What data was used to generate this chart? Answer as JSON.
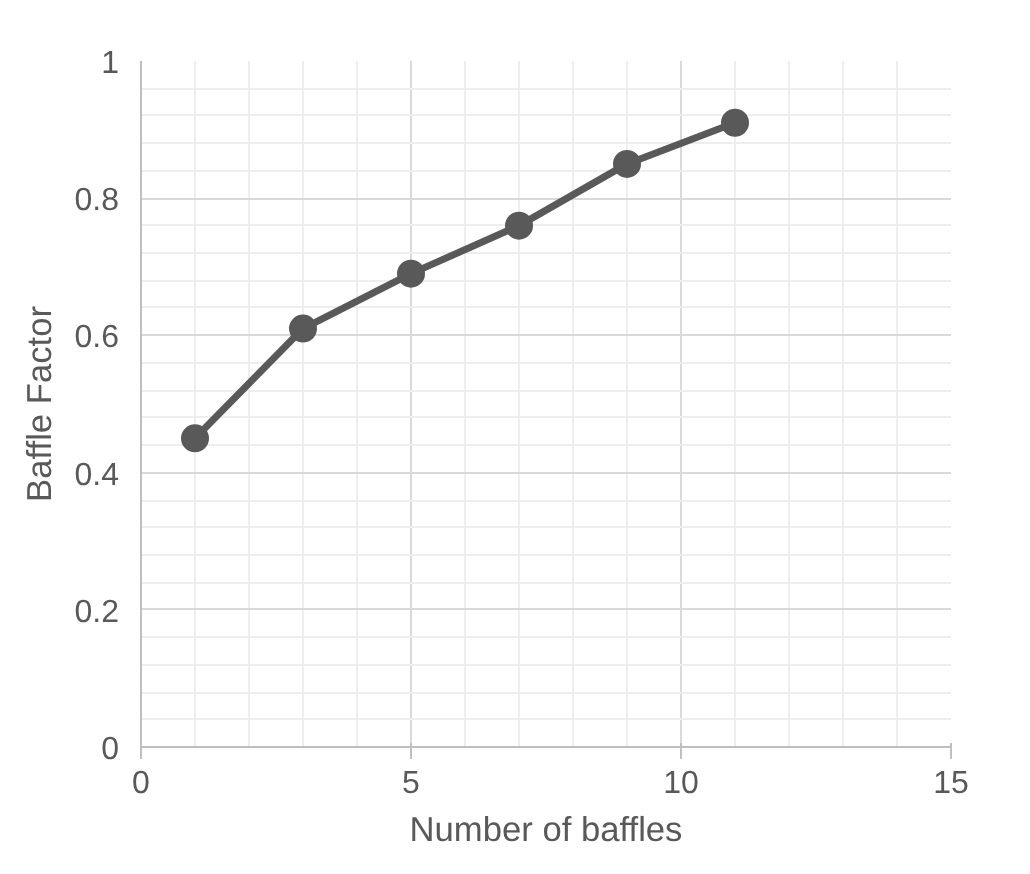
{
  "chart_data": {
    "type": "line",
    "xlabel": "Number of baffles",
    "ylabel": "Baffle Factor",
    "x": [
      1,
      3,
      5,
      7,
      9,
      11
    ],
    "series": [
      {
        "color": "#595959",
        "values": [
          0.45,
          0.61,
          0.69,
          0.76,
          0.85,
          0.91
        ]
      }
    ],
    "xlim": [
      0,
      15
    ],
    "xticks": [
      0,
      5,
      10,
      15
    ],
    "ylim": [
      0,
      1
    ],
    "yticks": [
      0,
      0.2,
      0.4,
      0.6,
      0.8,
      1
    ],
    "grid": true,
    "marker": "circle",
    "line_style": "solid"
  }
}
